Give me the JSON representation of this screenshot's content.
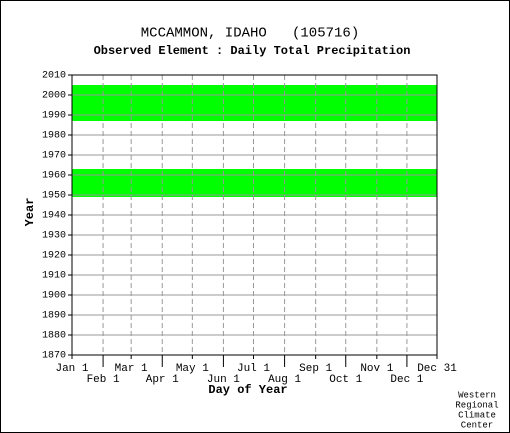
{
  "chart_data": {
    "type": "range",
    "title": "MCCAMMON, IDAHO   (105716)",
    "subtitle": "Observed Element : Daily Total Precipitation",
    "x_label": "Day of Year",
    "y_label": "Year",
    "credit": [
      "Western",
      "Regional",
      "Climate",
      "Center"
    ],
    "color": "#00ff00",
    "bands": [
      {
        "start": 1987,
        "end": 2005
      },
      {
        "start": 1949,
        "end": 1963
      }
    ],
    "xlim": [
      1,
      365
    ],
    "xticks": [
      {
        "value": 1,
        "label": "Jan 1"
      },
      {
        "value": 32,
        "label": "Feb 1"
      },
      {
        "value": 60,
        "label": "Mar 1"
      },
      {
        "value": 91,
        "label": "Apr 1"
      },
      {
        "value": 121,
        "label": "May 1"
      },
      {
        "value": 152,
        "label": "Jun 1"
      },
      {
        "value": 182,
        "label": "Jul 1"
      },
      {
        "value": 213,
        "label": "Aug 1"
      },
      {
        "value": 244,
        "label": "Sep 1"
      },
      {
        "value": 274,
        "label": "Oct 1"
      },
      {
        "value": 305,
        "label": "Nov 1"
      },
      {
        "value": 335,
        "label": "Dec 1"
      },
      {
        "value": 365,
        "label": "Dec 31"
      }
    ],
    "ylim": [
      1870,
      2010
    ],
    "yticks": [
      1870,
      1880,
      1890,
      1900,
      1910,
      1920,
      1930,
      1940,
      1950,
      1960,
      1970,
      1980,
      1990,
      2000,
      2010
    ],
    "grid": true
  }
}
